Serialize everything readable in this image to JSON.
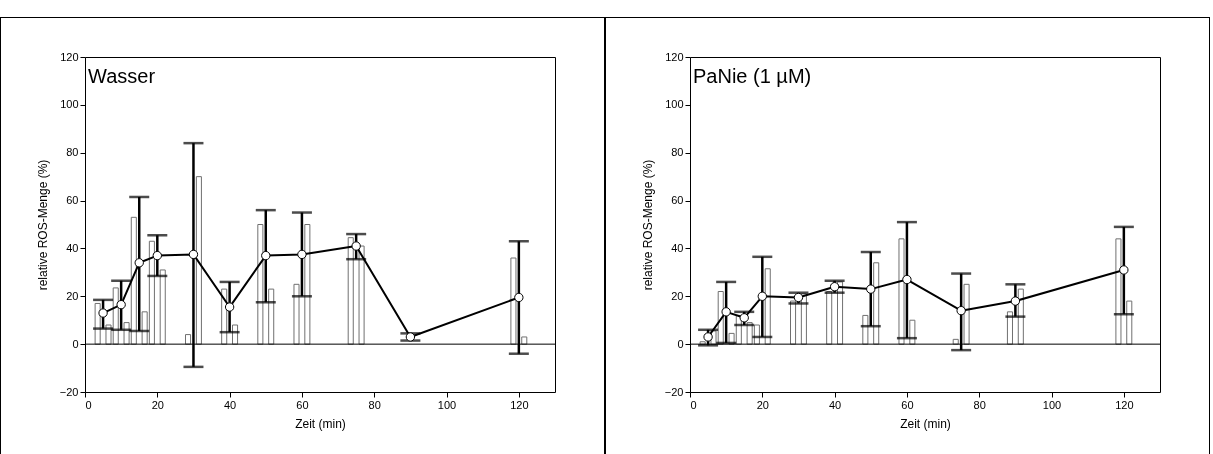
{
  "chart_data": [
    {
      "type": "line",
      "title": "Wasser",
      "xlabel": "Zeit (min)",
      "ylabel": "relative ROS-Menge (%)",
      "xlim": [
        0,
        130
      ],
      "xticks": [
        0,
        20,
        40,
        60,
        80,
        100,
        120
      ],
      "ylim": [
        -20,
        120
      ],
      "yticks": [
        -20,
        0,
        20,
        40,
        60,
        80,
        100,
        120
      ],
      "marker": "circle",
      "line_style": "solid",
      "ref_lines": [
        {
          "axis": "y",
          "value": 0,
          "color": "#000000"
        }
      ],
      "series": [
        {
          "type": "bar",
          "color": "#ffffff",
          "x": [
            3.5,
            8.5,
            13.5,
            18.5,
            28.5,
            38.5,
            48.5,
            58.5,
            73.5,
            88.5,
            118.5
          ],
          "values": [
            17,
            23.5,
            53,
            43,
            4,
            23,
            50,
            25,
            44.5,
            null,
            36
          ]
        },
        {
          "type": "bar",
          "color": "#ffffff",
          "x": [
            6.5,
            11.5,
            16.5,
            21.5,
            31.5,
            41.5,
            51.5,
            61.5,
            76.5,
            91.5,
            121.5
          ],
          "values": [
            8,
            9,
            13.5,
            31,
            70,
            8,
            23,
            50,
            41,
            null,
            3
          ]
        },
        {
          "color": "#000000",
          "x": [
            5,
            10,
            15,
            20,
            30,
            40,
            50,
            60,
            75,
            90,
            120
          ],
          "values": [
            13,
            16.5,
            34,
            37,
            37.5,
            15.5,
            37,
            37.5,
            41,
            3,
            19.5
          ],
          "errors": [
            [
              6.5,
              18.5
            ],
            [
              6,
              26.5
            ],
            [
              5.5,
              61.5
            ],
            [
              28.5,
              45.5
            ],
            [
              -9.5,
              84
            ],
            [
              5,
              26
            ],
            [
              17.5,
              56
            ],
            [
              20,
              55
            ],
            [
              35.5,
              46
            ],
            [
              1.5,
              4.5
            ],
            [
              -4,
              43
            ]
          ]
        }
      ]
    },
    {
      "type": "line",
      "title": "PaNie (1 µM)",
      "xlabel": "Zeit (min)",
      "ylabel": "relative ROS-Menge (%)",
      "xlim": [
        0,
        130
      ],
      "xticks": [
        0,
        20,
        40,
        60,
        80,
        100,
        120
      ],
      "ylim": [
        -20,
        120
      ],
      "yticks": [
        -20,
        0,
        20,
        40,
        60,
        80,
        100,
        120
      ],
      "marker": "circle",
      "line_style": "solid",
      "ref_lines": [
        {
          "axis": "y",
          "value": 0,
          "color": "#000000"
        }
      ],
      "series": [
        {
          "type": "bar",
          "color": "#ffffff",
          "x": [
            3.5,
            8.5,
            13.5,
            18.5,
            28.5,
            38.5,
            48.5,
            58.5,
            73.5,
            88.5,
            118.5
          ],
          "values": [
            1,
            22,
            12,
            8,
            18,
            22,
            12,
            44,
            2,
            13.5,
            44
          ]
        },
        {
          "type": "bar",
          "color": "#ffffff",
          "x": [
            6.5,
            11.5,
            16.5,
            21.5,
            31.5,
            41.5,
            51.5,
            61.5,
            76.5,
            91.5,
            121.5
          ],
          "values": [
            5.5,
            4.5,
            9,
            31.5,
            21,
            26,
            34,
            10,
            25,
            23,
            18
          ]
        },
        {
          "color": "#000000",
          "x": [
            5,
            10,
            15,
            20,
            30,
            40,
            50,
            60,
            75,
            90,
            120
          ],
          "values": [
            3,
            13.5,
            11,
            20,
            19.5,
            24,
            23,
            27,
            14,
            18,
            31
          ],
          "errors": [
            [
              -0.5,
              6
            ],
            [
              0.5,
              26
            ],
            [
              8,
              13.5
            ],
            [
              3,
              36.5
            ],
            [
              17,
              21.5
            ],
            [
              21.5,
              26.5
            ],
            [
              7.5,
              38.5
            ],
            [
              2.5,
              51
            ],
            [
              -2.5,
              29.5
            ],
            [
              11.5,
              25
            ],
            [
              12.5,
              49
            ]
          ]
        }
      ]
    }
  ]
}
